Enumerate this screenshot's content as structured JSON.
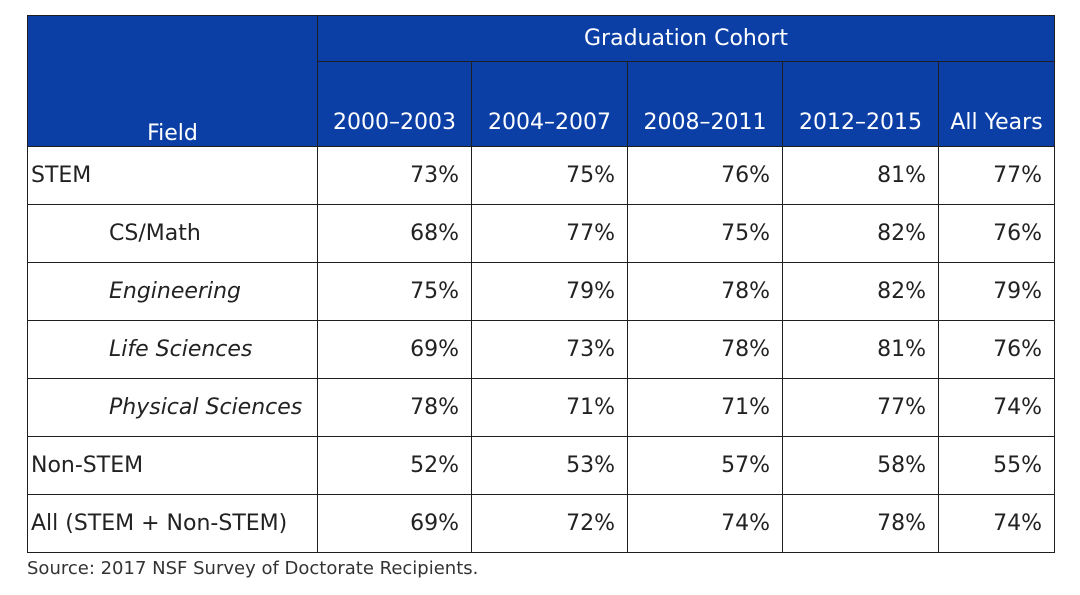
{
  "table": {
    "group_header": "Graduation Cohort",
    "field_header": "Field",
    "year_headers": [
      "2000–2003",
      "2004–2007",
      "2008–2011",
      "2012–2015",
      "All Years"
    ],
    "rows": [
      {
        "label": "STEM",
        "values": [
          "73%",
          "75%",
          "76%",
          "81%",
          "77%"
        ]
      },
      {
        "label": "CS/Math",
        "values": [
          "68%",
          "77%",
          "75%",
          "82%",
          "76%"
        ]
      },
      {
        "label": "Engineering",
        "values": [
          "75%",
          "79%",
          "78%",
          "82%",
          "79%"
        ]
      },
      {
        "label": "Life Sciences",
        "values": [
          "69%",
          "73%",
          "78%",
          "81%",
          "76%"
        ]
      },
      {
        "label": "Physical Sciences",
        "values": [
          "78%",
          "71%",
          "71%",
          "77%",
          "74%"
        ]
      },
      {
        "label": "Non-STEM",
        "values": [
          "52%",
          "53%",
          "57%",
          "58%",
          "55%"
        ]
      },
      {
        "label": "All (STEM + Non-STEM)",
        "values": [
          "69%",
          "72%",
          "74%",
          "78%",
          "74%"
        ]
      }
    ]
  },
  "source": "Source: 2017 NSF Survey of Doctorate Recipients."
}
